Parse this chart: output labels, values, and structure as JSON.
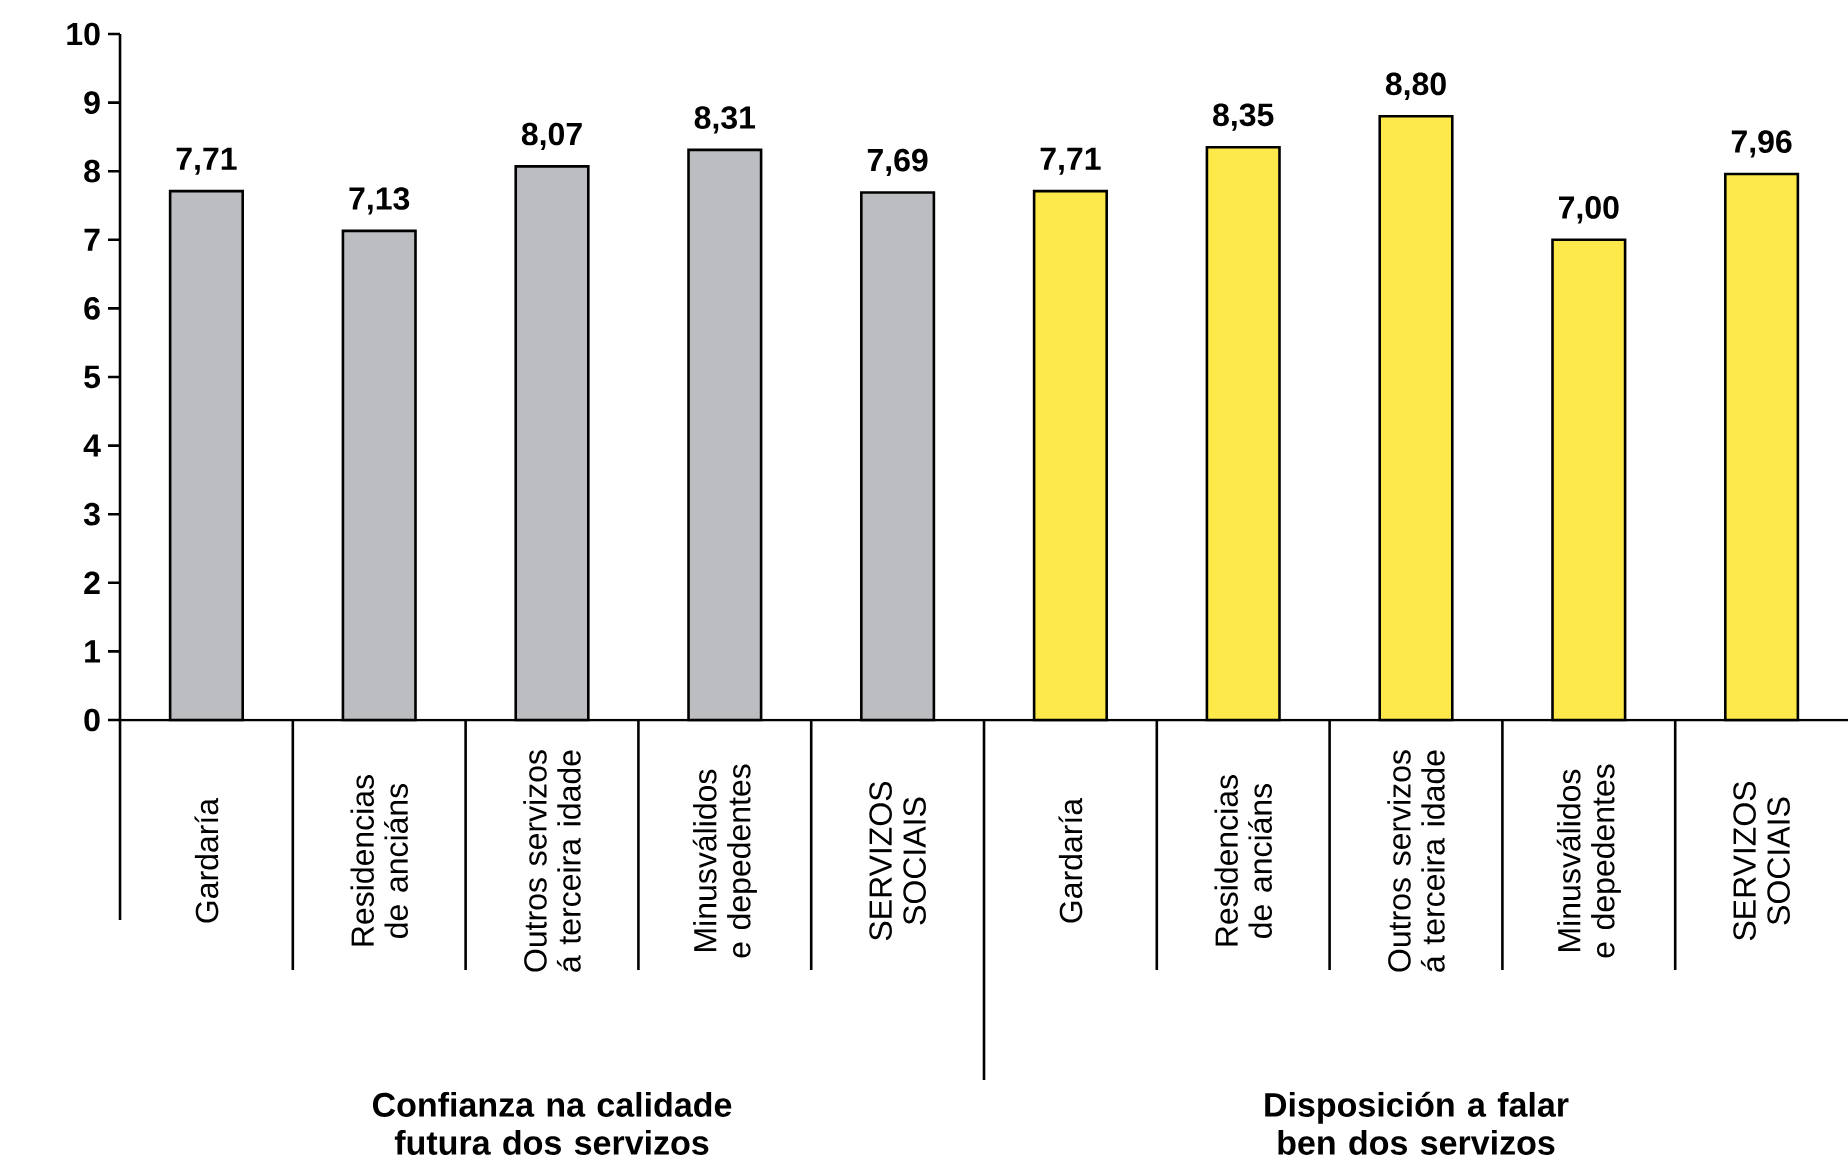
{
  "chart_data": {
    "type": "bar",
    "categories": [
      "Gardaría",
      "Residencias de anciáns",
      "Outros servizos á terceira idade",
      "Minusválidos e depedentes",
      "SERVIZOS SOCIAIS",
      "Gardaría",
      "Residencias de anciáns",
      "Outros servizos á terceira idade",
      "Minusválidos e depedentes",
      "SERVIZOS SOCIAIS"
    ],
    "values": [
      7.71,
      7.13,
      8.07,
      8.31,
      7.69,
      7.71,
      8.35,
      8.8,
      7.0,
      7.96
    ],
    "value_labels": [
      "7,71",
      "7,13",
      "8,07",
      "8,31",
      "7,69",
      "7,71",
      "8,35",
      "8,80",
      "7,00",
      "7,96"
    ],
    "colors": [
      "#bcbdc0",
      "#bcbdc0",
      "#bcbdc0",
      "#bcbdc0",
      "#bcbdc0",
      "#fde94a",
      "#fde94a",
      "#fde94a",
      "#fde94a",
      "#fde94a"
    ],
    "ylim": [
      0,
      10
    ],
    "yticks": [
      0,
      1,
      2,
      3,
      4,
      5,
      6,
      7,
      8,
      9,
      10
    ],
    "annotations": [
      "Confianza na calidade futura dos servizos",
      "Disposición a falar ben dos servizos"
    ]
  }
}
